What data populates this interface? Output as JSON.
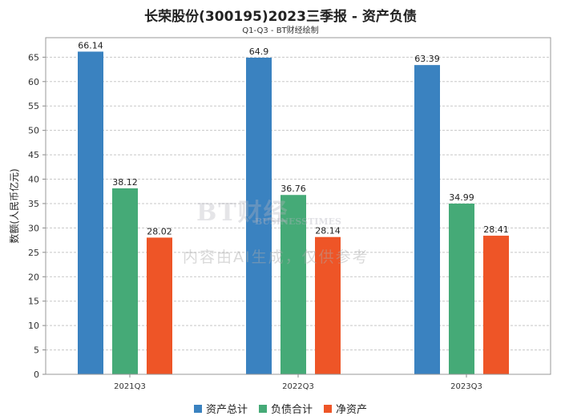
{
  "chart_data": {
    "type": "bar",
    "title": "长荣股份(300195)2023三季报 - 资产负债",
    "subtitle": "Q1-Q3 - BT财经绘制",
    "ylabel": "数额(人民币亿元)",
    "xlabel": "",
    "categories": [
      "2021Q3",
      "2022Q3",
      "2023Q3"
    ],
    "ylim": [
      0,
      69
    ],
    "yticks": [
      0,
      5,
      10,
      15,
      20,
      25,
      30,
      35,
      40,
      45,
      50,
      55,
      60,
      65
    ],
    "grid": true,
    "legend_position": "bottom",
    "series": [
      {
        "name": "资产总计",
        "color": "#3a82c0",
        "values": [
          66.14,
          64.9,
          63.39
        ],
        "labels": [
          "66.14",
          "64.9",
          "63.39"
        ]
      },
      {
        "name": "负债合计",
        "color": "#45aa77",
        "values": [
          38.12,
          36.76,
          34.99
        ],
        "labels": [
          "38.12",
          "36.76",
          "34.99"
        ]
      },
      {
        "name": "净资产",
        "color": "#ee5527",
        "values": [
          28.02,
          28.14,
          28.41
        ],
        "labels": [
          "28.02",
          "28.14",
          "28.41"
        ]
      }
    ]
  },
  "watermark": {
    "logo": "BT财经",
    "logo_sub": "BUSINESSTIMES",
    "notice": "内容由AI生成，仅供参考"
  }
}
